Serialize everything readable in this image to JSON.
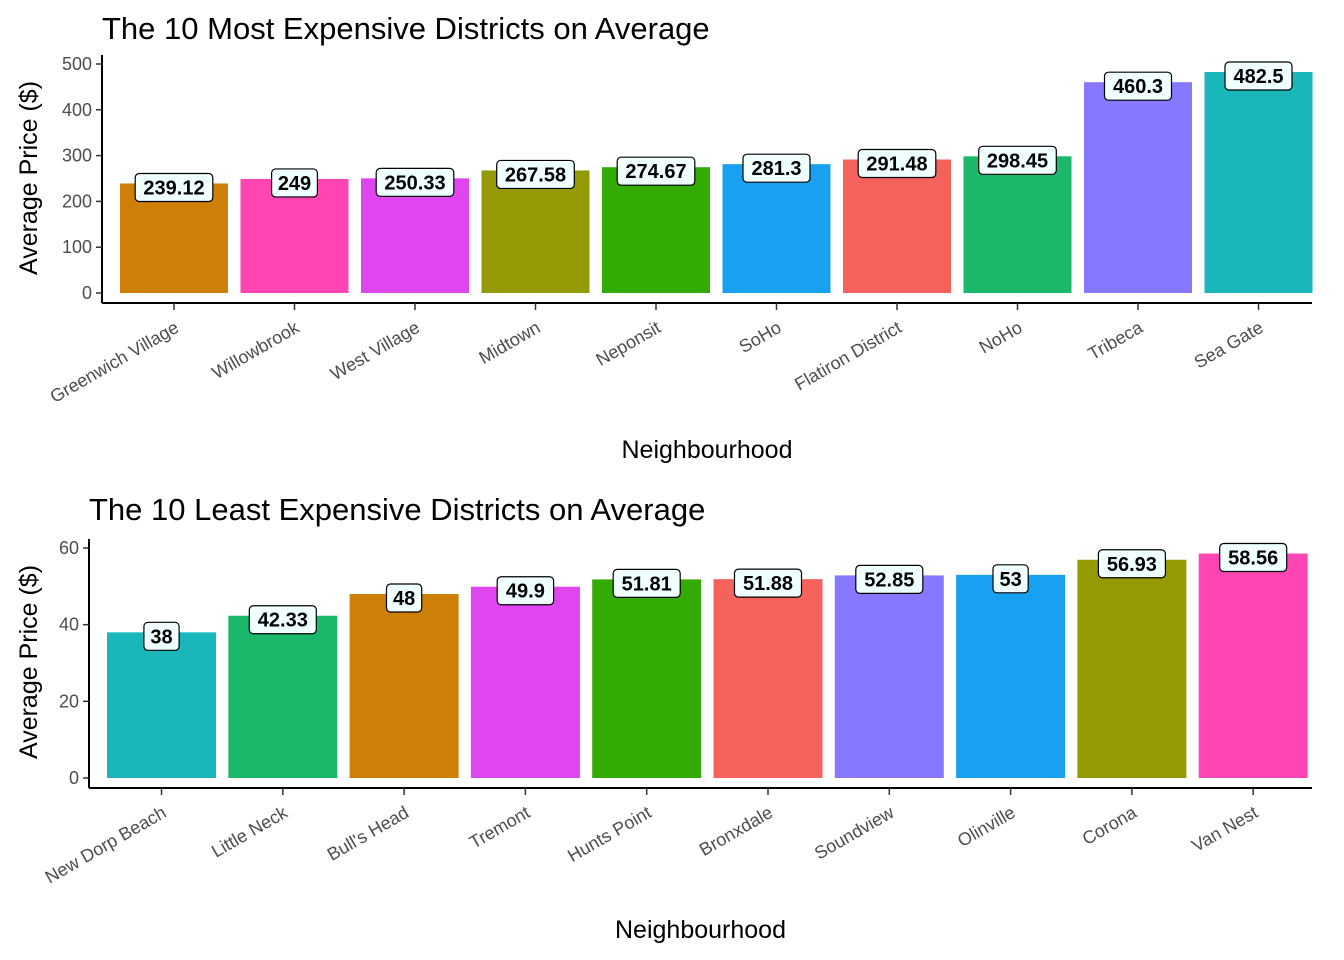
{
  "chart_data": [
    {
      "type": "bar",
      "title": "The 10 Most Expensive Districts on Average",
      "xlabel": "Neighbourhood",
      "ylabel": "Average Price ($)",
      "ylim": [
        0,
        500
      ],
      "yticks": [
        0,
        100,
        200,
        300,
        400,
        500
      ],
      "grid": false,
      "legend": "none",
      "categories": [
        "Greenwich Village",
        "Willowbrook",
        "West Village",
        "Midtown",
        "Neponsit",
        "SoHo",
        "Flatiron District",
        "NoHo",
        "Tribeca",
        "Sea Gate"
      ],
      "values": [
        239.12,
        249,
        250.33,
        267.58,
        274.67,
        281.3,
        291.48,
        298.45,
        460.3,
        482.5
      ],
      "labels": [
        "239.12",
        "249",
        "250.33",
        "267.58",
        "274.67",
        "281.3",
        "291.48",
        "298.45",
        "460.3",
        "482.5"
      ],
      "colors": [
        "#CD7F08",
        "#FF45B4",
        "#E046F0",
        "#939A04",
        "#34AA04",
        "#18A0F1",
        "#F5625C",
        "#1BB86C",
        "#8679FF",
        "#19B7B9"
      ]
    },
    {
      "type": "bar",
      "title": "The 10 Least Expensive Districts on Average",
      "xlabel": "Neighbourhood",
      "ylabel": "Average Price ($)",
      "ylim": [
        0,
        60
      ],
      "yticks": [
        0,
        20,
        40,
        60
      ],
      "grid": false,
      "legend": "none",
      "categories": [
        "New Dorp Beach",
        "Little Neck",
        "Bull's Head",
        "Tremont",
        "Hunts Point",
        "Bronxdale",
        "Soundview",
        "Olinville",
        "Corona",
        "Van Nest"
      ],
      "values": [
        38,
        42.33,
        48,
        49.9,
        51.81,
        51.88,
        52.85,
        53,
        56.93,
        58.56
      ],
      "labels": [
        "38",
        "42.33",
        "48",
        "49.9",
        "51.81",
        "51.88",
        "52.85",
        "53",
        "56.93",
        "58.56"
      ],
      "colors": [
        "#19B7B9",
        "#1BB86C",
        "#CD7F08",
        "#E046F0",
        "#34AA04",
        "#F5625C",
        "#8679FF",
        "#18A0F1",
        "#939A04",
        "#FF45B4"
      ]
    }
  ]
}
